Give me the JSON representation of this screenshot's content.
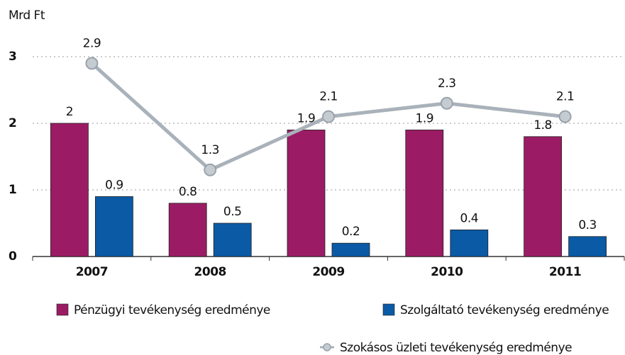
{
  "chart_data": {
    "type": "bar",
    "y_label": "Mrd Ft",
    "categories": [
      "2007",
      "2008",
      "2009",
      "2010",
      "2011"
    ],
    "series": [
      {
        "name": "Pénzügyi tevékenység eredménye",
        "type": "bar",
        "color": "#9b1c65",
        "values": [
          2,
          0.8,
          1.9,
          1.9,
          1.8
        ]
      },
      {
        "name": "Szolgáltató tevékenység eredménye",
        "type": "bar",
        "color": "#0a5aa6",
        "values": [
          0.9,
          0.5,
          0.2,
          0.4,
          0.3
        ]
      },
      {
        "name": "Szokásos üzleti tevékenység eredménye",
        "type": "line",
        "color": "#a9b2ba",
        "values": [
          2.9,
          1.3,
          2.1,
          2.3,
          2.1
        ]
      }
    ],
    "ylim": [
      0,
      3
    ],
    "yticks": [
      0,
      1,
      2,
      3
    ],
    "grid": true
  }
}
